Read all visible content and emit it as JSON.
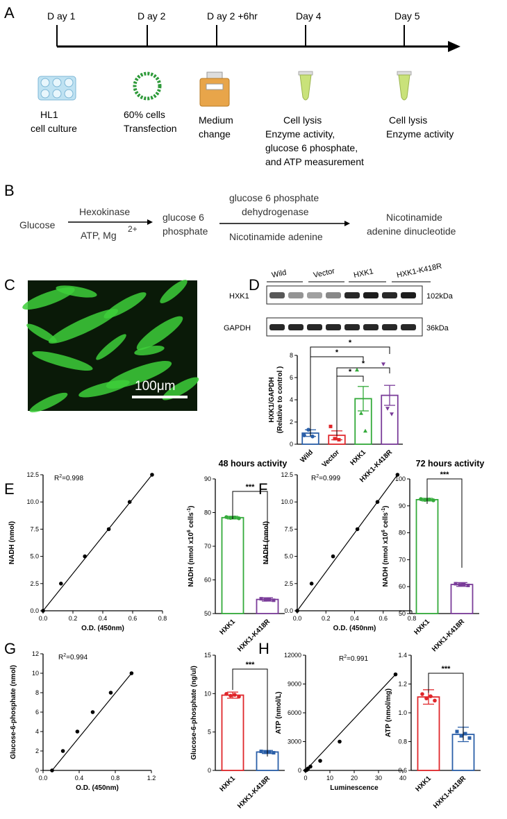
{
  "panels": {
    "A": "A",
    "B": "B",
    "C": "C",
    "D": "D",
    "E": "E",
    "F": "F",
    "G": "G",
    "H": "H"
  },
  "timeline": {
    "days": [
      "D ay 1",
      "D ay 2",
      "D ay 2 +6hr",
      "Day 4",
      "Day 5"
    ],
    "captions": [
      [
        "HL1",
        "cell culture"
      ],
      [
        "60% cells",
        "Transfection"
      ],
      [
        "Medium",
        "change"
      ],
      [
        "Cell lysis",
        "Enzyme activity,",
        "glucose 6 phosphate,",
        "and ATP measurement"
      ],
      [
        "Cell lysis",
        "Enzyme activity"
      ]
    ]
  },
  "reaction": {
    "substrate": "Glucose",
    "enzyme1": "Hexokinase",
    "cofactor1": "ATP, Mg",
    "cofactor1_sup": "2+",
    "intermediate": [
      "glucose 6",
      "phosphate"
    ],
    "enzyme2": [
      "glucose 6 phosphate",
      "dehydrogenase"
    ],
    "cofactor2": "Nicotinamide adenine",
    "product": [
      "Nicotinamide",
      "adenine dinucleotide"
    ]
  },
  "micrograph": {
    "scale_bar": "100μm",
    "colors": {
      "bg": "#0a1a08",
      "cell": "#3dcf3a"
    }
  },
  "blot": {
    "groups": [
      "Wild",
      "Vector",
      "HXK1",
      "HXK1-K418R"
    ],
    "rows": [
      {
        "name": "HXK1",
        "size": "102kDa"
      },
      {
        "name": "GAPDH",
        "size": "36kDa"
      }
    ]
  },
  "colors": {
    "green": "#33aa3a",
    "red": "#e0262a",
    "blue": "#2a5fa8",
    "purple": "#7a3c99"
  },
  "chart_data": [
    {
      "panel": "D",
      "type": "bar",
      "ylabel": "HXK1/GAPDH (Relative to control )",
      "ylim": [
        0,
        8
      ],
      "yticks": [
        0,
        2,
        4,
        6,
        8
      ],
      "categories": [
        "Wild",
        "Vector",
        "HXK1",
        "HXK1-K418R"
      ],
      "values": [
        1.0,
        0.8,
        4.1,
        4.4
      ],
      "errors": [
        0.3,
        0.4,
        1.1,
        0.9
      ],
      "points": [
        [
          0.8,
          1.3,
          0.7
        ],
        [
          1.6,
          0.5,
          0.4
        ],
        [
          6.7,
          2.8,
          1.2
        ],
        [
          7.2,
          3.2,
          2.7
        ]
      ],
      "significance": [
        "*",
        "*",
        "*",
        "*"
      ]
    },
    {
      "panel": "E",
      "type": "scatter",
      "xlabel": "O.D. (450nm)",
      "ylabel": "NADH (nmol)",
      "annotation": "R²=0.998",
      "xlim": [
        0,
        0.8
      ],
      "ylim": [
        0,
        12.5
      ],
      "xticks": [
        "0.0",
        "0.2",
        "0.4",
        "0.6",
        "0.8"
      ],
      "yticks": [
        "0.0",
        "2.5",
        "5.0",
        "7.5",
        "10.0",
        "12.5"
      ],
      "x": [
        0,
        0.12,
        0.28,
        0.44,
        0.58,
        0.73
      ],
      "y": [
        0,
        2.5,
        5,
        7.5,
        10,
        12.5
      ]
    },
    {
      "panel": "E",
      "type": "bar",
      "title": "48 hours activity",
      "ylabel": "NADH (nmol x10",
      "ylabel_sup1": "6",
      "ylabel_mid": " cells",
      "ylabel_sup2": "-1",
      "ylabel_end": ")",
      "ylim": [
        50,
        90
      ],
      "yticks": [
        50,
        60,
        70,
        80,
        90
      ],
      "categories": [
        "HXK1",
        "HXK1-K418R"
      ],
      "values": [
        78.5,
        54.2
      ],
      "errors": [
        0.4,
        0.5
      ],
      "significance": "***"
    },
    {
      "panel": "F",
      "type": "scatter",
      "xlabel": "O.D. (450nm)",
      "ylabel": "NADH (nmol)",
      "annotation": "R²=0.999",
      "xlim": [
        0,
        0.8
      ],
      "ylim": [
        0,
        12.5
      ],
      "xticks": [
        "0.0",
        "0.2",
        "0.4",
        "0.6",
        "0.8"
      ],
      "yticks": [
        "0.0",
        "2.5",
        "5.0",
        "7.5",
        "10.0",
        "12.5"
      ],
      "x": [
        0,
        0.1,
        0.25,
        0.42,
        0.56,
        0.7
      ],
      "y": [
        0,
        2.5,
        5,
        7.5,
        10,
        12.5
      ]
    },
    {
      "panel": "F",
      "type": "bar",
      "title": "72 hours activity",
      "ylabel": "NADH (nmol x10",
      "ylabel_sup1": "6",
      "ylabel_mid": " cells",
      "ylabel_sup2": "-1",
      "ylabel_end": ")",
      "ylim": [
        50,
        100
      ],
      "yticks": [
        50,
        60,
        70,
        80,
        90,
        100
      ],
      "categories": [
        "HXK1",
        "HXK1-K418R"
      ],
      "values": [
        92.3,
        60.8
      ],
      "errors": [
        0.5,
        0.7
      ],
      "significance": "***"
    },
    {
      "panel": "G",
      "type": "scatter",
      "xlabel": "O.D. (450nm)",
      "ylabel": "Glucose-6-phosphate (nmol)",
      "annotation": "R²=0.994",
      "xlim": [
        0,
        1.2
      ],
      "ylim": [
        0,
        12
      ],
      "xticks": [
        "0.0",
        "0.4",
        "0.8",
        "1.2"
      ],
      "yticks": [
        "0",
        "2",
        "4",
        "6",
        "8",
        "10",
        "12"
      ],
      "x": [
        0.1,
        0.22,
        0.38,
        0.55,
        0.75,
        0.98
      ],
      "y": [
        0,
        2,
        4,
        6,
        8,
        10
      ]
    },
    {
      "panel": "G",
      "type": "bar",
      "ylabel": "Glucose-6-phosphate (ng/ul)",
      "ylim": [
        0,
        15
      ],
      "yticks": [
        0,
        5,
        10,
        15
      ],
      "categories": [
        "HXK1",
        "HXK1-K418R"
      ],
      "values": [
        9.8,
        2.4
      ],
      "errors": [
        0.4,
        0.2
      ],
      "significance": "***"
    },
    {
      "panel": "H",
      "type": "scatter",
      "xlabel": "Luminescence",
      "ylabel": "ATP (nmol/L)",
      "annotation": "R²=0.991",
      "xlim": [
        0,
        40
      ],
      "ylim": [
        0,
        12000
      ],
      "xticks": [
        "0",
        "10",
        "20",
        "30",
        "40"
      ],
      "yticks": [
        "0",
        "3000",
        "6000",
        "9000",
        "12000"
      ],
      "x": [
        0,
        0.5,
        1,
        2,
        6,
        14,
        37
      ],
      "y": [
        0,
        50,
        200,
        400,
        1000,
        3000,
        10000
      ]
    },
    {
      "panel": "H",
      "type": "bar",
      "ylabel": "ATP (nmol/mg)",
      "ylim": [
        0.6,
        1.4
      ],
      "yticks": [
        "0.6",
        "0.8",
        "1.0",
        "1.2",
        "1.4"
      ],
      "categories": [
        "HXK1",
        "HXK1-K418R"
      ],
      "values": [
        1.11,
        0.85
      ],
      "errors": [
        0.05,
        0.05
      ],
      "significance": "***"
    }
  ]
}
